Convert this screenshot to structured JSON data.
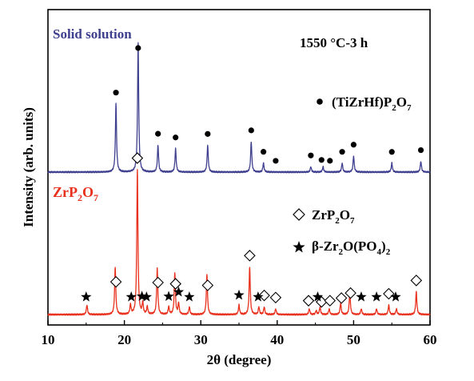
{
  "chart_data": {
    "type": "line",
    "title": "",
    "xlabel": "2θ (degree)",
    "ylabel": "Intensity (arb. units)",
    "xlim": [
      10,
      60
    ],
    "x_ticks": [
      10,
      20,
      30,
      40,
      50,
      60
    ],
    "condition_label": "1550 °C-3 h",
    "grid": false,
    "y_tick_labels": false,
    "series": [
      {
        "name": "Solid solution",
        "color": "#3f3f8f",
        "baseline": 0.0,
        "peaks": [
          {
            "x": 18.9,
            "h": 0.38
          },
          {
            "x": 21.8,
            "h": 0.72
          },
          {
            "x": 24.4,
            "h": 0.15
          },
          {
            "x": 26.7,
            "h": 0.13
          },
          {
            "x": 30.9,
            "h": 0.15
          },
          {
            "x": 36.6,
            "h": 0.17
          },
          {
            "x": 38.2,
            "h": 0.05
          },
          {
            "x": 44.4,
            "h": 0.03
          },
          {
            "x": 46.0,
            "h": 0.03
          },
          {
            "x": 48.5,
            "h": 0.05
          },
          {
            "x": 50.0,
            "h": 0.09
          },
          {
            "x": 55.0,
            "h": 0.05
          },
          {
            "x": 58.8,
            "h": 0.06
          }
        ]
      },
      {
        "name": "ZrP2O7",
        "color": "#e8301c",
        "baseline": 0.0,
        "peaks": [
          {
            "x": 15.1,
            "h": 0.05
          },
          {
            "x": 18.8,
            "h": 0.25
          },
          {
            "x": 20.8,
            "h": 0.05
          },
          {
            "x": 21.7,
            "h": 0.76
          },
          {
            "x": 22.4,
            "h": 0.06
          },
          {
            "x": 23.0,
            "h": 0.04
          },
          {
            "x": 24.3,
            "h": 0.24
          },
          {
            "x": 25.8,
            "h": 0.04
          },
          {
            "x": 26.6,
            "h": 0.22
          },
          {
            "x": 27.1,
            "h": 0.06
          },
          {
            "x": 28.5,
            "h": 0.04
          },
          {
            "x": 30.8,
            "h": 0.21
          },
          {
            "x": 35.0,
            "h": 0.05
          },
          {
            "x": 36.4,
            "h": 0.25
          },
          {
            "x": 37.6,
            "h": 0.04
          },
          {
            "x": 38.3,
            "h": 0.04
          },
          {
            "x": 39.8,
            "h": 0.03
          },
          {
            "x": 44.2,
            "h": 0.03
          },
          {
            "x": 45.1,
            "h": 0.02
          },
          {
            "x": 45.6,
            "h": 0.04
          },
          {
            "x": 46.8,
            "h": 0.03
          },
          {
            "x": 48.3,
            "h": 0.06
          },
          {
            "x": 49.5,
            "h": 0.12
          },
          {
            "x": 51.0,
            "h": 0.03
          },
          {
            "x": 53.0,
            "h": 0.03
          },
          {
            "x": 54.6,
            "h": 0.05
          },
          {
            "x": 55.6,
            "h": 0.03
          },
          {
            "x": 58.2,
            "h": 0.12
          }
        ]
      }
    ],
    "markers": [
      {
        "series": 0,
        "symbol": "dot",
        "x": [
          18.9,
          21.8,
          24.4,
          26.7,
          30.9,
          36.6,
          38.2,
          39.8,
          44.4,
          45.8,
          46.9,
          48.5,
          50.0,
          55.0,
          58.8
        ]
      },
      {
        "series": 1,
        "symbol": "diamond",
        "x": [
          21.7,
          18.9,
          24.4,
          26.7,
          30.9,
          36.4,
          38.3,
          39.8,
          44.1,
          45.8,
          46.9,
          48.4,
          49.6,
          54.6,
          58.2
        ]
      },
      {
        "series": 1,
        "symbol": "star",
        "x": [
          15.0,
          20.9,
          22.3,
          22.9,
          25.8,
          27.1,
          28.5,
          35.0,
          37.5,
          45.3,
          51.0,
          53.0,
          55.5
        ]
      }
    ],
    "legend": {
      "placement": "right",
      "entries": [
        {
          "symbol": "dot",
          "label": "(TiZrHf)P2O7"
        },
        {
          "symbol": "diamond",
          "label": "ZrP2O7"
        },
        {
          "symbol": "star",
          "label": "β-Zr2O(PO4)2"
        }
      ]
    }
  }
}
